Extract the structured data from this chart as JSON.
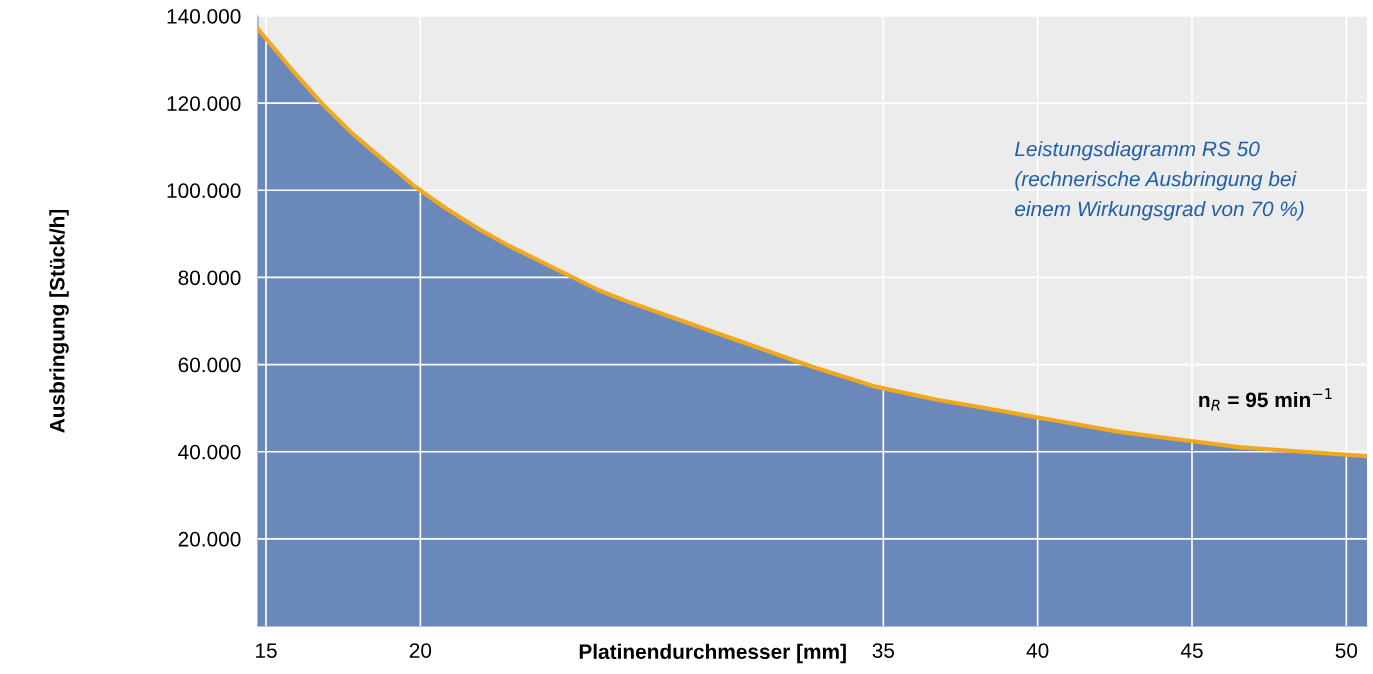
{
  "chart_data": {
    "type": "area",
    "xlabel": "Platinendurchmesser [mm]",
    "ylabel": "Ausbringung [Stück/h]",
    "x": [
      14.74,
      15.8,
      16.8,
      17.8,
      18.8,
      19.8,
      20.8,
      21.8,
      22.8,
      23.8,
      25.8,
      26.7,
      28.7,
      30.7,
      32.7,
      34.7,
      36.7,
      38.7,
      40.7,
      42.7,
      44.7,
      46.6,
      48.6,
      50.67
    ],
    "series": [
      {
        "color": "#6b88bb",
        "values": [
          137000,
          128000,
          120000,
          113000,
          107000,
          101000,
          96000,
          91500,
          87500,
          84000,
          77000,
          74500,
          69500,
          64500,
          59500,
          55000,
          52000,
          49500,
          47000,
          44500,
          42700,
          41000,
          40000,
          39000
        ]
      },
      {
        "type": "line",
        "color": "#f2a81d",
        "values": [
          137000,
          128000,
          120000,
          113000,
          107000,
          101000,
          96000,
          91500,
          87500,
          84000,
          77000,
          74500,
          69500,
          64500,
          59500,
          55000,
          52000,
          49500,
          47000,
          44500,
          42700,
          41000,
          40000,
          39000
        ]
      }
    ],
    "xlim": [
      14.74,
      50.67
    ],
    "xticks": [
      15,
      20,
      35,
      40,
      45,
      50
    ],
    "ylim": [
      0,
      140000
    ],
    "yticks": [
      {
        "value": 20000,
        "label": "20.000"
      },
      {
        "value": 40000,
        "label": "40.000"
      },
      {
        "value": 60000,
        "label": "60.000"
      },
      {
        "value": 80000,
        "label": "80.000"
      },
      {
        "value": 100000,
        "label": "100.000"
      },
      {
        "value": 120000,
        "label": "120.000"
      },
      {
        "value": 140000,
        "label": "140.000"
      }
    ],
    "grid": true,
    "annotations": [
      "Leistungsdiagramm RS 50\n(rechnerische Ausbringung bei\neinem Wirkungsgrad von 70 %)",
      "n$_{R}$ = 95 min$^{−1}$"
    ]
  }
}
